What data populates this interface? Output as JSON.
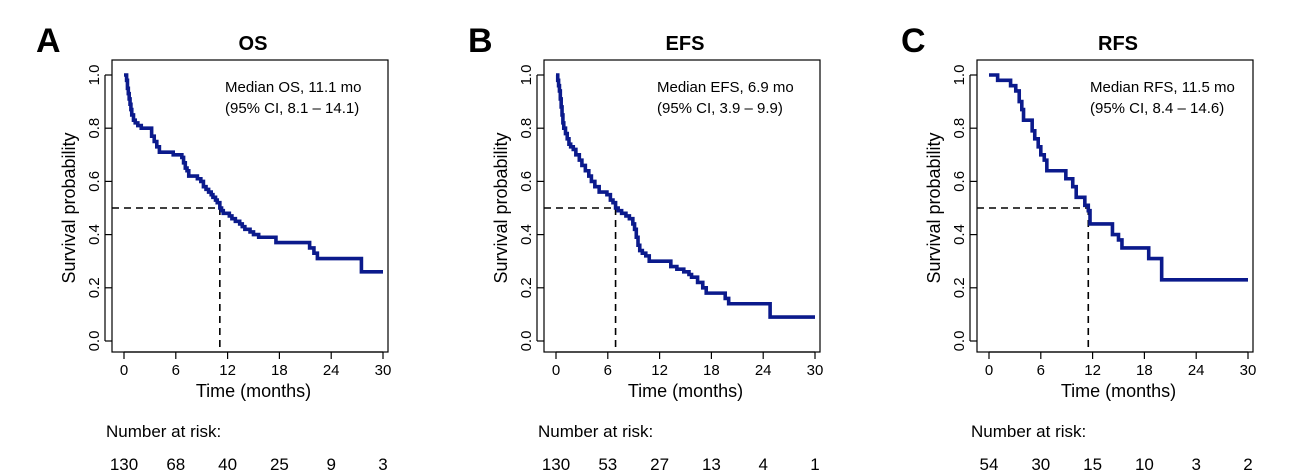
{
  "chart_data": [
    {
      "type": "line",
      "panel": "A",
      "title": "OS",
      "xlabel": "Time (months)",
      "ylabel": "Survival probability",
      "xlim": [
        0,
        30
      ],
      "ylim": [
        0,
        1
      ],
      "xticks": [
        0,
        6,
        12,
        18,
        24,
        30
      ],
      "yticks": [
        0.0,
        0.2,
        0.4,
        0.6,
        0.8,
        1.0
      ],
      "ytick_labels": [
        "0.0",
        "0.2",
        "0.4",
        "0.6",
        "0.8",
        "1.0"
      ],
      "annotation": [
        "Median OS, 11.1 mo",
        "(95% CI, 8.1 – 14.1)"
      ],
      "median": 11.1,
      "median_level": 0.5,
      "color": "#0b1a8c",
      "curve": [
        [
          0,
          1.0
        ],
        [
          0.3,
          0.98
        ],
        [
          0.4,
          0.95
        ],
        [
          0.5,
          0.93
        ],
        [
          0.6,
          0.91
        ],
        [
          0.7,
          0.89
        ],
        [
          0.8,
          0.87
        ],
        [
          0.9,
          0.85
        ],
        [
          1.1,
          0.83
        ],
        [
          1.3,
          0.82
        ],
        [
          1.6,
          0.81
        ],
        [
          2.0,
          0.8
        ],
        [
          2.9,
          0.8
        ],
        [
          3.2,
          0.77
        ],
        [
          3.5,
          0.75
        ],
        [
          3.8,
          0.73
        ],
        [
          4.1,
          0.71
        ],
        [
          5.5,
          0.71
        ],
        [
          5.7,
          0.7
        ],
        [
          6.4,
          0.7
        ],
        [
          6.7,
          0.69
        ],
        [
          6.9,
          0.67
        ],
        [
          7.1,
          0.65
        ],
        [
          7.3,
          0.64
        ],
        [
          7.5,
          0.62
        ],
        [
          8.2,
          0.62
        ],
        [
          8.5,
          0.61
        ],
        [
          8.9,
          0.6
        ],
        [
          9.2,
          0.58
        ],
        [
          9.5,
          0.57
        ],
        [
          9.8,
          0.56
        ],
        [
          10.1,
          0.55
        ],
        [
          10.3,
          0.54
        ],
        [
          10.6,
          0.53
        ],
        [
          10.8,
          0.52
        ],
        [
          11.1,
          0.5
        ],
        [
          11.3,
          0.49
        ],
        [
          11.5,
          0.48
        ],
        [
          12.0,
          0.48
        ],
        [
          12.2,
          0.47
        ],
        [
          12.5,
          0.46
        ],
        [
          12.9,
          0.45
        ],
        [
          13.4,
          0.44
        ],
        [
          13.7,
          0.43
        ],
        [
          14.0,
          0.42
        ],
        [
          14.6,
          0.41
        ],
        [
          15.0,
          0.4
        ],
        [
          15.6,
          0.39
        ],
        [
          17.4,
          0.39
        ],
        [
          17.6,
          0.37
        ],
        [
          21.2,
          0.37
        ],
        [
          21.5,
          0.35
        ],
        [
          22.0,
          0.33
        ],
        [
          22.4,
          0.31
        ],
        [
          27.3,
          0.31
        ],
        [
          27.5,
          0.26
        ],
        [
          30.0,
          0.26
        ]
      ],
      "risk_title": "Number at risk:",
      "risk": [
        "130",
        "68",
        "40",
        "25",
        "9",
        "3"
      ]
    },
    {
      "type": "line",
      "panel": "B",
      "title": "EFS",
      "xlabel": "Time (months)",
      "ylabel": "Survival probability",
      "xlim": [
        0,
        30
      ],
      "ylim": [
        0,
        1
      ],
      "xticks": [
        0,
        6,
        12,
        18,
        24,
        30
      ],
      "yticks": [
        0.0,
        0.2,
        0.4,
        0.6,
        0.8,
        1.0
      ],
      "ytick_labels": [
        "0.0",
        "0.2",
        "0.4",
        "0.6",
        "0.8",
        "1.0"
      ],
      "annotation": [
        "Median EFS, 6.9 mo",
        "(95% CI, 3.9 – 9.9)"
      ],
      "median": 6.9,
      "median_level": 0.5,
      "color": "#0b1a8c",
      "curve": [
        [
          0,
          1.0
        ],
        [
          0.2,
          0.98
        ],
        [
          0.3,
          0.96
        ],
        [
          0.4,
          0.94
        ],
        [
          0.5,
          0.91
        ],
        [
          0.6,
          0.88
        ],
        [
          0.7,
          0.85
        ],
        [
          0.8,
          0.82
        ],
        [
          0.9,
          0.8
        ],
        [
          1.1,
          0.78
        ],
        [
          1.3,
          0.76
        ],
        [
          1.5,
          0.74
        ],
        [
          1.7,
          0.73
        ],
        [
          2.0,
          0.72
        ],
        [
          2.3,
          0.7
        ],
        [
          2.7,
          0.68
        ],
        [
          3.0,
          0.66
        ],
        [
          3.4,
          0.64
        ],
        [
          3.8,
          0.62
        ],
        [
          4.1,
          0.6
        ],
        [
          4.5,
          0.58
        ],
        [
          5.0,
          0.56
        ],
        [
          5.6,
          0.56
        ],
        [
          5.9,
          0.55
        ],
        [
          6.3,
          0.53
        ],
        [
          6.6,
          0.52
        ],
        [
          6.9,
          0.5
        ],
        [
          7.2,
          0.49
        ],
        [
          7.6,
          0.48
        ],
        [
          8.1,
          0.47
        ],
        [
          8.5,
          0.46
        ],
        [
          8.9,
          0.44
        ],
        [
          9.1,
          0.42
        ],
        [
          9.3,
          0.39
        ],
        [
          9.5,
          0.36
        ],
        [
          9.7,
          0.34
        ],
        [
          10.0,
          0.33
        ],
        [
          10.4,
          0.32
        ],
        [
          10.8,
          0.3
        ],
        [
          13.0,
          0.3
        ],
        [
          13.3,
          0.28
        ],
        [
          14.0,
          0.27
        ],
        [
          14.8,
          0.26
        ],
        [
          15.4,
          0.25
        ],
        [
          15.7,
          0.24
        ],
        [
          16.4,
          0.22
        ],
        [
          17.0,
          0.2
        ],
        [
          17.4,
          0.18
        ],
        [
          19.3,
          0.18
        ],
        [
          19.6,
          0.16
        ],
        [
          20.0,
          0.14
        ],
        [
          24.7,
          0.14
        ],
        [
          24.8,
          0.09
        ],
        [
          30.0,
          0.09
        ]
      ],
      "risk_title": "Number at risk:",
      "risk": [
        "130",
        "53",
        "27",
        "13",
        "4",
        "1"
      ]
    },
    {
      "type": "line",
      "panel": "C",
      "title": "RFS",
      "xlabel": "Time (months)",
      "ylabel": "Survival probability",
      "xlim": [
        0,
        30
      ],
      "ylim": [
        0,
        1
      ],
      "xticks": [
        0,
        6,
        12,
        18,
        24,
        30
      ],
      "yticks": [
        0.0,
        0.2,
        0.4,
        0.6,
        0.8,
        1.0
      ],
      "ytick_labels": [
        "0.0",
        "0.2",
        "0.4",
        "0.6",
        "0.8",
        "1.0"
      ],
      "annotation": [
        "Median RFS, 11.5 mo",
        "(95% CI, 8.4 – 14.6)"
      ],
      "median": 11.5,
      "median_level": 0.5,
      "color": "#0b1a8c",
      "curve": [
        [
          0,
          1.0
        ],
        [
          0.8,
          1.0
        ],
        [
          1.0,
          0.98
        ],
        [
          2.2,
          0.98
        ],
        [
          2.5,
          0.96
        ],
        [
          3.1,
          0.94
        ],
        [
          3.5,
          0.9
        ],
        [
          3.8,
          0.87
        ],
        [
          4.0,
          0.83
        ],
        [
          4.8,
          0.83
        ],
        [
          5.0,
          0.79
        ],
        [
          5.3,
          0.76
        ],
        [
          5.7,
          0.73
        ],
        [
          6.0,
          0.7
        ],
        [
          6.4,
          0.68
        ],
        [
          6.7,
          0.64
        ],
        [
          8.6,
          0.64
        ],
        [
          8.9,
          0.61
        ],
        [
          9.5,
          0.61
        ],
        [
          9.7,
          0.58
        ],
        [
          10.1,
          0.54
        ],
        [
          10.9,
          0.54
        ],
        [
          11.1,
          0.51
        ],
        [
          11.5,
          0.49
        ],
        [
          11.7,
          0.44
        ],
        [
          14.1,
          0.44
        ],
        [
          14.3,
          0.4
        ],
        [
          15.0,
          0.38
        ],
        [
          15.4,
          0.35
        ],
        [
          18.2,
          0.35
        ],
        [
          18.5,
          0.31
        ],
        [
          19.8,
          0.31
        ],
        [
          20.0,
          0.23
        ],
        [
          30.0,
          0.23
        ]
      ],
      "risk_title": "Number at risk:",
      "risk": [
        "54",
        "30",
        "15",
        "10",
        "3",
        "2"
      ]
    }
  ]
}
